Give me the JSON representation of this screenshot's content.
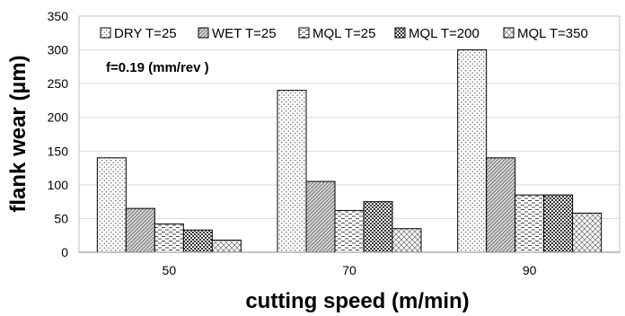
{
  "chart_data": {
    "type": "bar",
    "xlabel": "cutting speed (m/min)",
    "ylabel": "flank wear (µm)",
    "annotation": "f=0.19 (mm/rev )",
    "categories": [
      "50",
      "70",
      "90"
    ],
    "ylim": [
      0,
      350
    ],
    "yticks": [
      0,
      50,
      100,
      150,
      200,
      250,
      300,
      350
    ],
    "grid": true,
    "legend_position": "top",
    "series": [
      {
        "name": "DRY T=25",
        "values": [
          140,
          240,
          300
        ],
        "pattern": "dots"
      },
      {
        "name": "WET T=25",
        "values": [
          65,
          105,
          140
        ],
        "pattern": "diagonal"
      },
      {
        "name": "MQL T=25",
        "values": [
          42,
          62,
          85
        ],
        "pattern": "dashes"
      },
      {
        "name": "MQL T=200",
        "values": [
          33,
          75,
          85
        ],
        "pattern": "checker"
      },
      {
        "name": "MQL T=350",
        "values": [
          18,
          35,
          58
        ],
        "pattern": "crosshatch"
      }
    ]
  }
}
